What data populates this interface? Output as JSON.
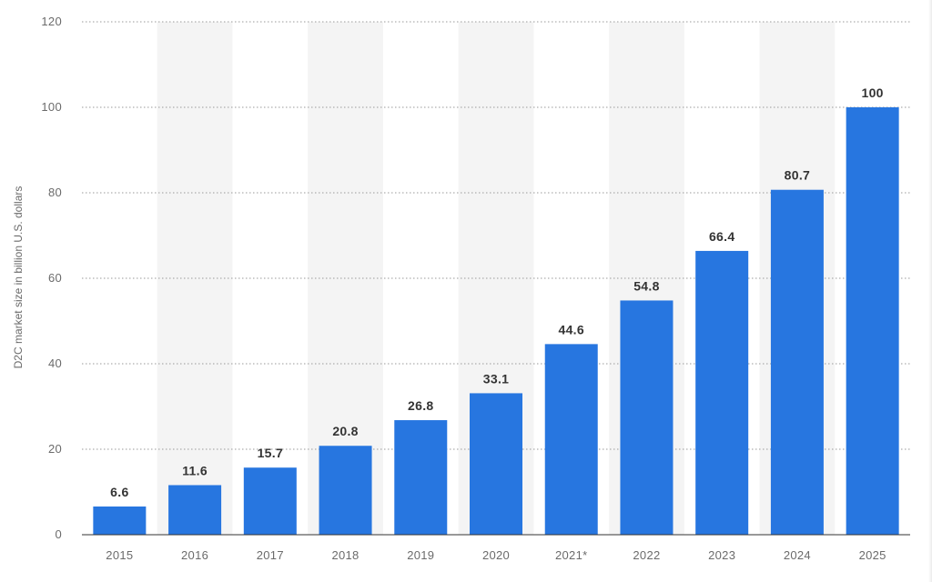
{
  "colors": {
    "bar": "#2776e0",
    "band": "#f4f4f4"
  },
  "chart_data": {
    "type": "bar",
    "title": "",
    "xlabel": "",
    "ylabel": "D2C market size in billion U.S. dollars",
    "categories": [
      "2015",
      "2016",
      "2017",
      "2018",
      "2019",
      "2020",
      "2021*",
      "2022",
      "2023",
      "2024",
      "2025"
    ],
    "values": [
      6.6,
      11.6,
      15.7,
      20.8,
      26.8,
      33.1,
      44.6,
      54.8,
      66.4,
      80.7,
      100
    ],
    "value_labels": [
      "6.6",
      "11.6",
      "15.7",
      "20.8",
      "26.8",
      "33.1",
      "44.6",
      "54.8",
      "66.4",
      "80.7",
      "100"
    ],
    "ylim": [
      0,
      120
    ],
    "yticks": [
      "0",
      "20",
      "40",
      "60",
      "80",
      "100",
      "120"
    ],
    "grid": true,
    "legend": "none"
  }
}
